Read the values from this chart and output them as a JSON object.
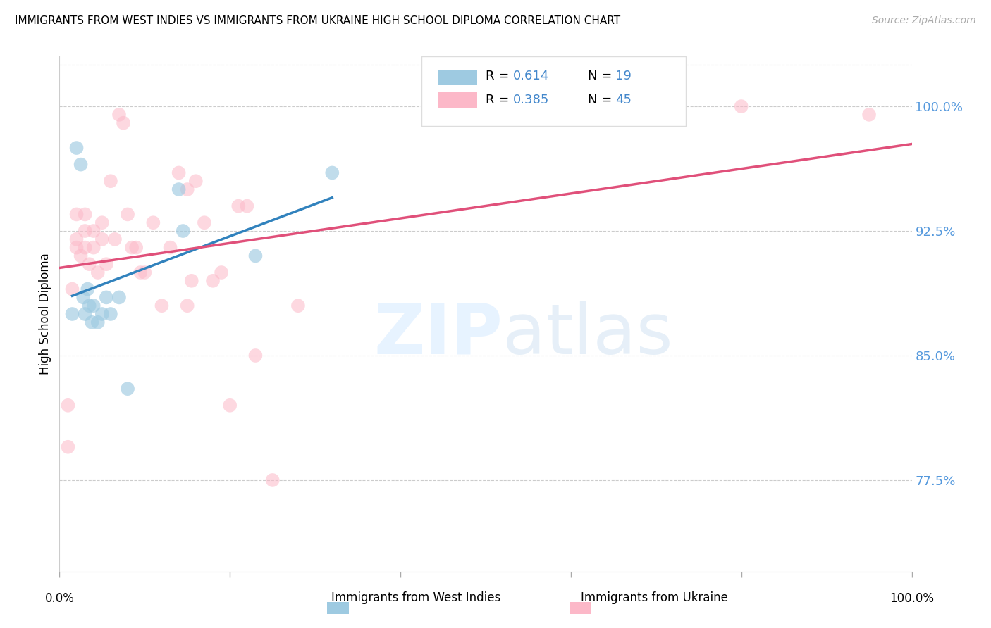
{
  "title": "IMMIGRANTS FROM WEST INDIES VS IMMIGRANTS FROM UKRAINE HIGH SCHOOL DIPLOMA CORRELATION CHART",
  "source": "Source: ZipAtlas.com",
  "ylabel": "High School Diploma",
  "yticks": [
    77.5,
    85.0,
    92.5,
    100.0
  ],
  "ytick_labels": [
    "77.5%",
    "85.0%",
    "92.5%",
    "100.0%"
  ],
  "xlim": [
    0.0,
    1.0
  ],
  "ylim": [
    72.0,
    103.0
  ],
  "legend_r1": "R = 0.614",
  "legend_n1": "N = 19",
  "legend_r2": "R = 0.385",
  "legend_n2": "N = 45",
  "color_blue": "#9ecae1",
  "color_pink": "#fcb8c8",
  "color_blue_line": "#3182bd",
  "color_pink_line": "#e0507a",
  "color_blue_text": "#4488cc",
  "color_right_axis": "#5599dd",
  "background": "#ffffff",
  "blue_x": [
    0.015,
    0.02,
    0.025,
    0.028,
    0.03,
    0.033,
    0.035,
    0.038,
    0.04,
    0.045,
    0.05,
    0.055,
    0.06,
    0.07,
    0.08,
    0.14,
    0.145,
    0.23,
    0.32
  ],
  "blue_y": [
    87.5,
    97.5,
    96.5,
    88.5,
    87.5,
    89.0,
    88.0,
    87.0,
    88.0,
    87.0,
    87.5,
    88.5,
    87.5,
    88.5,
    83.0,
    95.0,
    92.5,
    91.0,
    96.0
  ],
  "pink_x": [
    0.01,
    0.01,
    0.015,
    0.02,
    0.02,
    0.02,
    0.025,
    0.03,
    0.03,
    0.03,
    0.035,
    0.04,
    0.04,
    0.045,
    0.05,
    0.05,
    0.055,
    0.06,
    0.065,
    0.07,
    0.075,
    0.08,
    0.085,
    0.09,
    0.095,
    0.1,
    0.11,
    0.12,
    0.13,
    0.14,
    0.15,
    0.155,
    0.16,
    0.17,
    0.18,
    0.19,
    0.2,
    0.21,
    0.22,
    0.23,
    0.25,
    0.28,
    0.8,
    0.95,
    0.15
  ],
  "pink_y": [
    79.5,
    82.0,
    89.0,
    93.5,
    92.0,
    91.5,
    91.0,
    93.5,
    92.5,
    91.5,
    90.5,
    92.5,
    91.5,
    90.0,
    93.0,
    92.0,
    90.5,
    95.5,
    92.0,
    99.5,
    99.0,
    93.5,
    91.5,
    91.5,
    90.0,
    90.0,
    93.0,
    88.0,
    91.5,
    96.0,
    95.0,
    89.5,
    95.5,
    93.0,
    89.5,
    90.0,
    82.0,
    94.0,
    94.0,
    85.0,
    77.5,
    88.0,
    100.0,
    99.5,
    88.0
  ]
}
